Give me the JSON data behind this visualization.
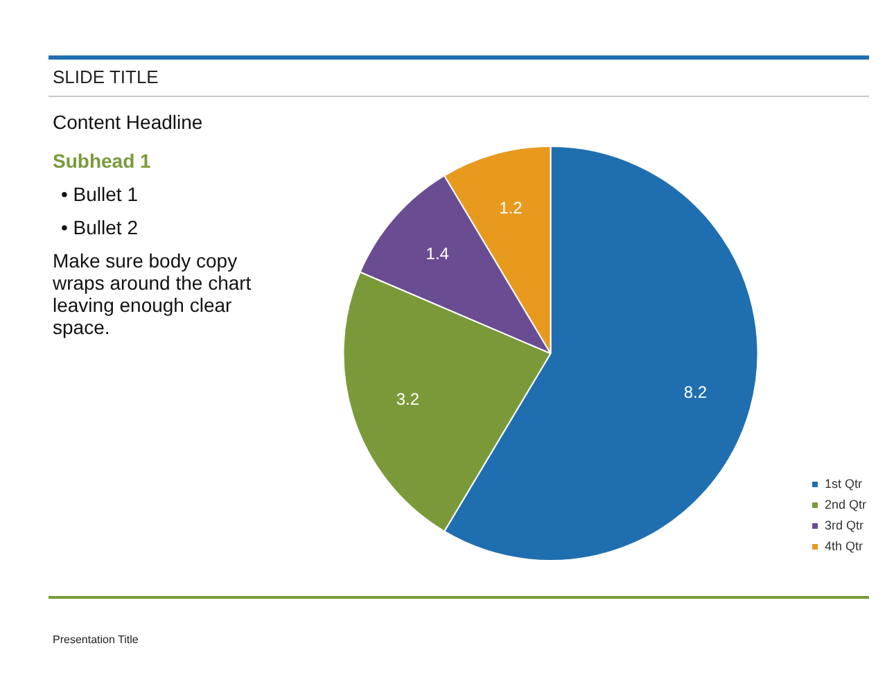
{
  "chart_data": {
    "type": "pie",
    "title": "SLIDE TITLE",
    "subtitle": "Content Headline",
    "annotations": [
      "Subhead 1",
      "• Bullet 1",
      "• Bullet 2",
      "Make sure body copy wraps around the chart leaving enough clear space.",
      "Presentation Title"
    ],
    "categories": [
      "1st Qtr",
      "2nd Qtr",
      "3rd Qtr",
      "4th Qtr"
    ],
    "values": [
      8.2,
      3.2,
      1.4,
      1.2
    ],
    "colors": [
      "#1f6fb0",
      "#7a9a3a",
      "#6a4c93",
      "#e89a1e"
    ],
    "data_labels": true,
    "legend": "bottom right"
  }
}
